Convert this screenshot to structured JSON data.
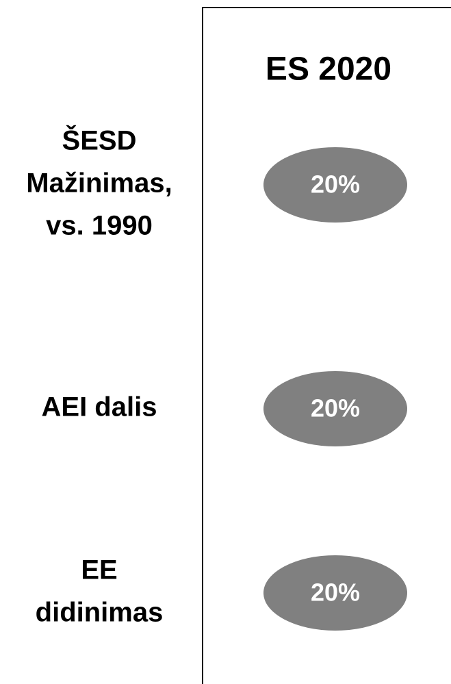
{
  "header": "ES 2020",
  "rows": [
    {
      "label": [
        "ŠESD",
        "Mažinimas,",
        "vs. 1990"
      ],
      "value": "20%"
    },
    {
      "label": [
        "AEI dalis"
      ],
      "value": "20%"
    },
    {
      "label": [
        "EE",
        "didinimas"
      ],
      "value": "20%"
    }
  ]
}
